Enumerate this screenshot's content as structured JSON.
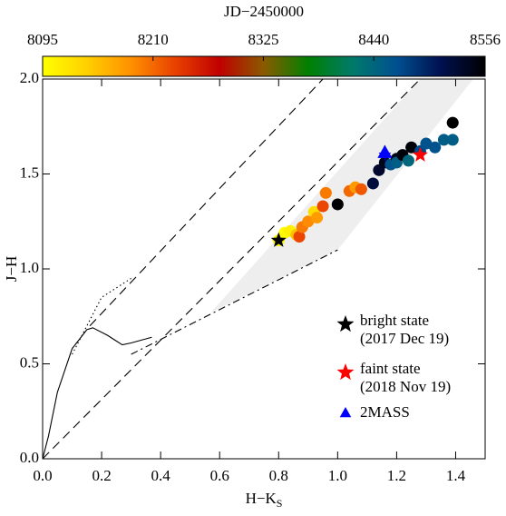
{
  "chart_data": {
    "type": "scatter",
    "colorbar_label": "JD−2450000",
    "x_label": "H−K",
    "x_label_sub": "S",
    "y_label": "J−H",
    "xlim": [
      0,
      1.5
    ],
    "ylim": [
      0,
      2
    ],
    "xticks": [
      {
        "value": 0,
        "label": "0.0"
      },
      {
        "value": 0.2,
        "label": "0.2"
      },
      {
        "value": 0.4,
        "label": "0.4"
      },
      {
        "value": 0.6,
        "label": "0.6"
      },
      {
        "value": 0.8,
        "label": "0.8"
      },
      {
        "value": 1.0,
        "label": "1.0"
      },
      {
        "value": 1.2,
        "label": "1.2"
      },
      {
        "value": 1.4,
        "label": "1.4"
      }
    ],
    "yticks": [
      {
        "value": 0,
        "label": "0.0"
      },
      {
        "value": 0.5,
        "label": "0.5"
      },
      {
        "value": 1.0,
        "label": "1.0"
      },
      {
        "value": 1.5,
        "label": "1.5"
      },
      {
        "value": 2.0,
        "label": "2.0"
      }
    ],
    "clim": [
      8095,
      8556
    ],
    "cticks": [
      8095,
      8210,
      8325,
      8440,
      8556
    ],
    "colormap": [
      "#ffff00",
      "#ffd000",
      "#ff9000",
      "#e84000",
      "#c00000",
      "#8a5a00",
      "#008000",
      "#007a6a",
      "#005090",
      "#001050",
      "#000000"
    ],
    "region": {
      "x": [
        0.57,
        1.0,
        1.46,
        1.28
      ],
      "y": [
        0.77,
        1.1,
        2.0,
        2.0
      ],
      "color": "#eeeeee"
    },
    "curves": [
      {
        "style": "dashed",
        "x": [
          0,
          1.28
        ],
        "y": [
          0,
          2.0
        ]
      },
      {
        "style": "dashed",
        "x": [
          0.16,
          0.95
        ],
        "y": [
          0.7,
          2.0
        ]
      },
      {
        "style": "dashdot",
        "x": [
          0.3,
          1.0
        ],
        "y": [
          0.55,
          1.1
        ]
      },
      {
        "style": "solid",
        "x": [
          0,
          0.02,
          0.05,
          0.1,
          0.15,
          0.17,
          0.22,
          0.27,
          0.3,
          0.37
        ],
        "y": [
          0,
          0.12,
          0.35,
          0.58,
          0.68,
          0.69,
          0.65,
          0.6,
          0.61,
          0.64
        ]
      },
      {
        "style": "dotted",
        "x": [
          0.1,
          0.15,
          0.2,
          0.3
        ],
        "y": [
          0.55,
          0.7,
          0.85,
          0.95
        ]
      }
    ],
    "points": {
      "x": [
        0.8,
        0.82,
        0.84,
        0.86,
        0.87,
        0.88,
        0.9,
        0.92,
        0.93,
        0.95,
        0.96,
        1.0,
        1.04,
        1.06,
        1.08,
        1.12,
        1.14,
        1.16,
        1.18,
        1.2,
        1.2,
        1.22,
        1.24,
        1.25,
        1.28,
        1.3,
        1.33,
        1.36,
        1.39,
        1.39
      ],
      "y": [
        1.15,
        1.19,
        1.2,
        1.18,
        1.17,
        1.22,
        1.25,
        1.3,
        1.27,
        1.33,
        1.4,
        1.34,
        1.41,
        1.43,
        1.42,
        1.45,
        1.52,
        1.56,
        1.55,
        1.58,
        1.56,
        1.6,
        1.57,
        1.64,
        1.62,
        1.66,
        1.64,
        1.68,
        1.68,
        1.77
      ],
      "jd": [
        8105,
        8100,
        8110,
        8150,
        8230,
        8200,
        8190,
        8130,
        8180,
        8230,
        8200,
        8556,
        8210,
        8180,
        8220,
        8520,
        8530,
        8540,
        8460,
        8540,
        8450,
        8550,
        8440,
        8550,
        8470,
        8460,
        8460,
        8450,
        8450,
        8556
      ]
    },
    "xerr": 0.02,
    "markers": [
      {
        "name": "bright state",
        "date": "(2017 Dec 19)",
        "shape": "star",
        "color": "#000000",
        "x": 0.8,
        "y": 1.15
      },
      {
        "name": "faint state",
        "date": "(2018 Nov 19)",
        "shape": "star",
        "color": "#ff0000",
        "x": 1.28,
        "y": 1.6
      },
      {
        "name": "2MASS",
        "shape": "triangle",
        "color": "#0000ff",
        "x": 1.16,
        "y": 1.61,
        "xerr": 0.02,
        "yerr": 0.04
      }
    ]
  }
}
